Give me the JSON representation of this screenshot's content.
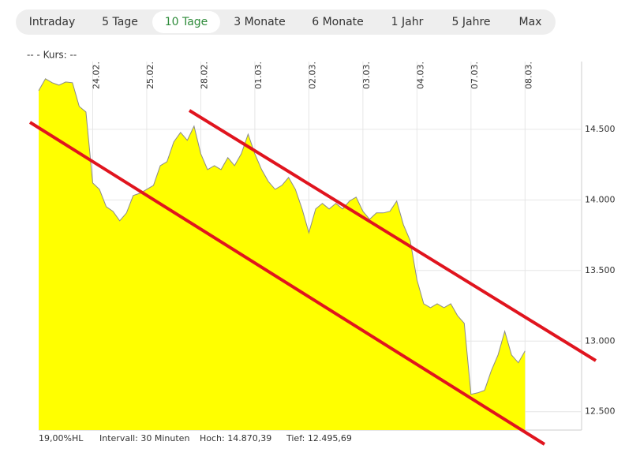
{
  "tabs": [
    "Intraday",
    "5 Tage",
    "10 Tage",
    "3 Monate",
    "6 Monate",
    "1 Jahr",
    "5 Jahre",
    "Max"
  ],
  "active_tab": "10 Tage",
  "legend": "--  - Kurs: --",
  "footer": [
    "19,00%HL",
    "Intervall: 30 Minuten",
    "Hoch: 14.870,39",
    "Tief: 12.495,69"
  ],
  "chart_data": {
    "type": "area",
    "color": "#ffff00",
    "line_color": "#8a8a8a",
    "grid": true,
    "categories": [
      null,
      null,
      null,
      null,
      null,
      null,
      null,
      null,
      "24.02.",
      null,
      null,
      null,
      null,
      null,
      null,
      null,
      "25.02.",
      null,
      null,
      null,
      null,
      null,
      null,
      null,
      "28.02.",
      null,
      null,
      null,
      null,
      null,
      null,
      null,
      "01.03.",
      null,
      null,
      null,
      null,
      null,
      null,
      null,
      "02.03.",
      null,
      null,
      null,
      null,
      null,
      null,
      null,
      "03.03.",
      null,
      null,
      null,
      null,
      null,
      null,
      null,
      "04.03.",
      null,
      null,
      null,
      null,
      null,
      null,
      null,
      "07.03.",
      null,
      null,
      null,
      null,
      null,
      null,
      null,
      "08.03."
    ],
    "values": [
      14774,
      14858,
      14830,
      14813,
      14835,
      14830,
      14662,
      14623,
      14120,
      14075,
      13952,
      13919,
      13852,
      13908,
      14031,
      14047,
      14075,
      14103,
      14243,
      14271,
      14411,
      14478,
      14422,
      14522,
      14327,
      14215,
      14243,
      14215,
      14299,
      14243,
      14327,
      14466,
      14327,
      14215,
      14131,
      14075,
      14103,
      14159,
      14075,
      13936,
      13768,
      13936,
      13975,
      13936,
      13975,
      13936,
      13992,
      14020,
      13919,
      13863,
      13908,
      13908,
      13919,
      13992,
      13824,
      13712,
      13433,
      13265,
      13237,
      13265,
      13237,
      13265,
      13181,
      13126,
      12623,
      12634,
      12651,
      12790,
      12902,
      13070,
      12902,
      12847,
      12930
    ],
    "ylim": [
      12370,
      14980
    ],
    "yticks": [
      {
        "value": 12500,
        "label": "12.500"
      },
      {
        "value": 13000,
        "label": "13.000"
      },
      {
        "value": 13500,
        "label": "13.500"
      },
      {
        "value": 14000,
        "label": "14.000"
      },
      {
        "value": 14500,
        "label": "14.500"
      }
    ]
  }
}
